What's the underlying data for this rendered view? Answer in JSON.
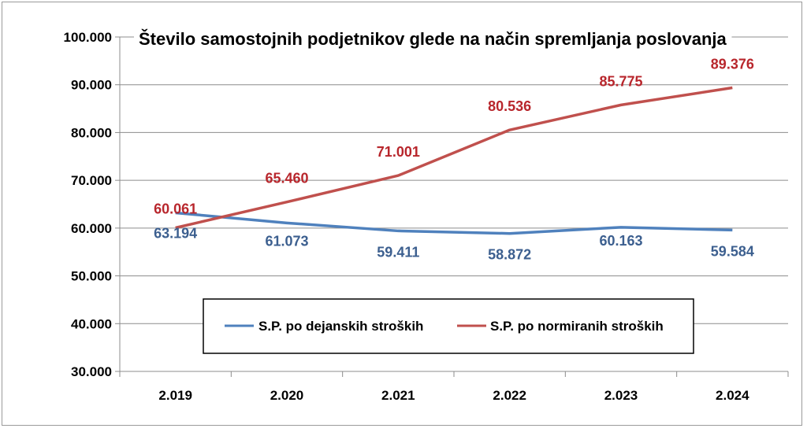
{
  "chart_data": {
    "type": "line",
    "title": "Število samostojnih podjetnikov glede na način spremljanja poslovanja",
    "xlabel": "",
    "ylabel": "",
    "categories": [
      "2.019",
      "2.020",
      "2.021",
      "2.022",
      "2.023",
      "2.024"
    ],
    "ylim": [
      30000,
      100000
    ],
    "y_ticks": [
      30000,
      40000,
      50000,
      60000,
      70000,
      80000,
      90000,
      100000
    ],
    "y_tick_labels": [
      "30.000",
      "40.000",
      "50.000",
      "60.000",
      "70.000",
      "80.000",
      "90.000",
      "100.000"
    ],
    "grid": true,
    "legend_position": "bottom-center",
    "series": [
      {
        "name": "S.P. po dejanskih stroških",
        "color": "#4f81bd",
        "label_color": "#3c5f8f",
        "values": [
          63194,
          61073,
          59411,
          58872,
          60163,
          59584
        ],
        "labels": [
          "63.194",
          "61.073",
          "59.411",
          "58.872",
          "60.163",
          "59.584"
        ]
      },
      {
        "name": "S.P. po normiranih stroških",
        "color": "#c0504d",
        "label_color": "#b8262c",
        "values": [
          60061,
          65460,
          71001,
          80536,
          85775,
          89376
        ],
        "labels": [
          "60.061",
          "65.460",
          "71.001",
          "80.536",
          "85.775",
          "89.376"
        ]
      }
    ]
  }
}
